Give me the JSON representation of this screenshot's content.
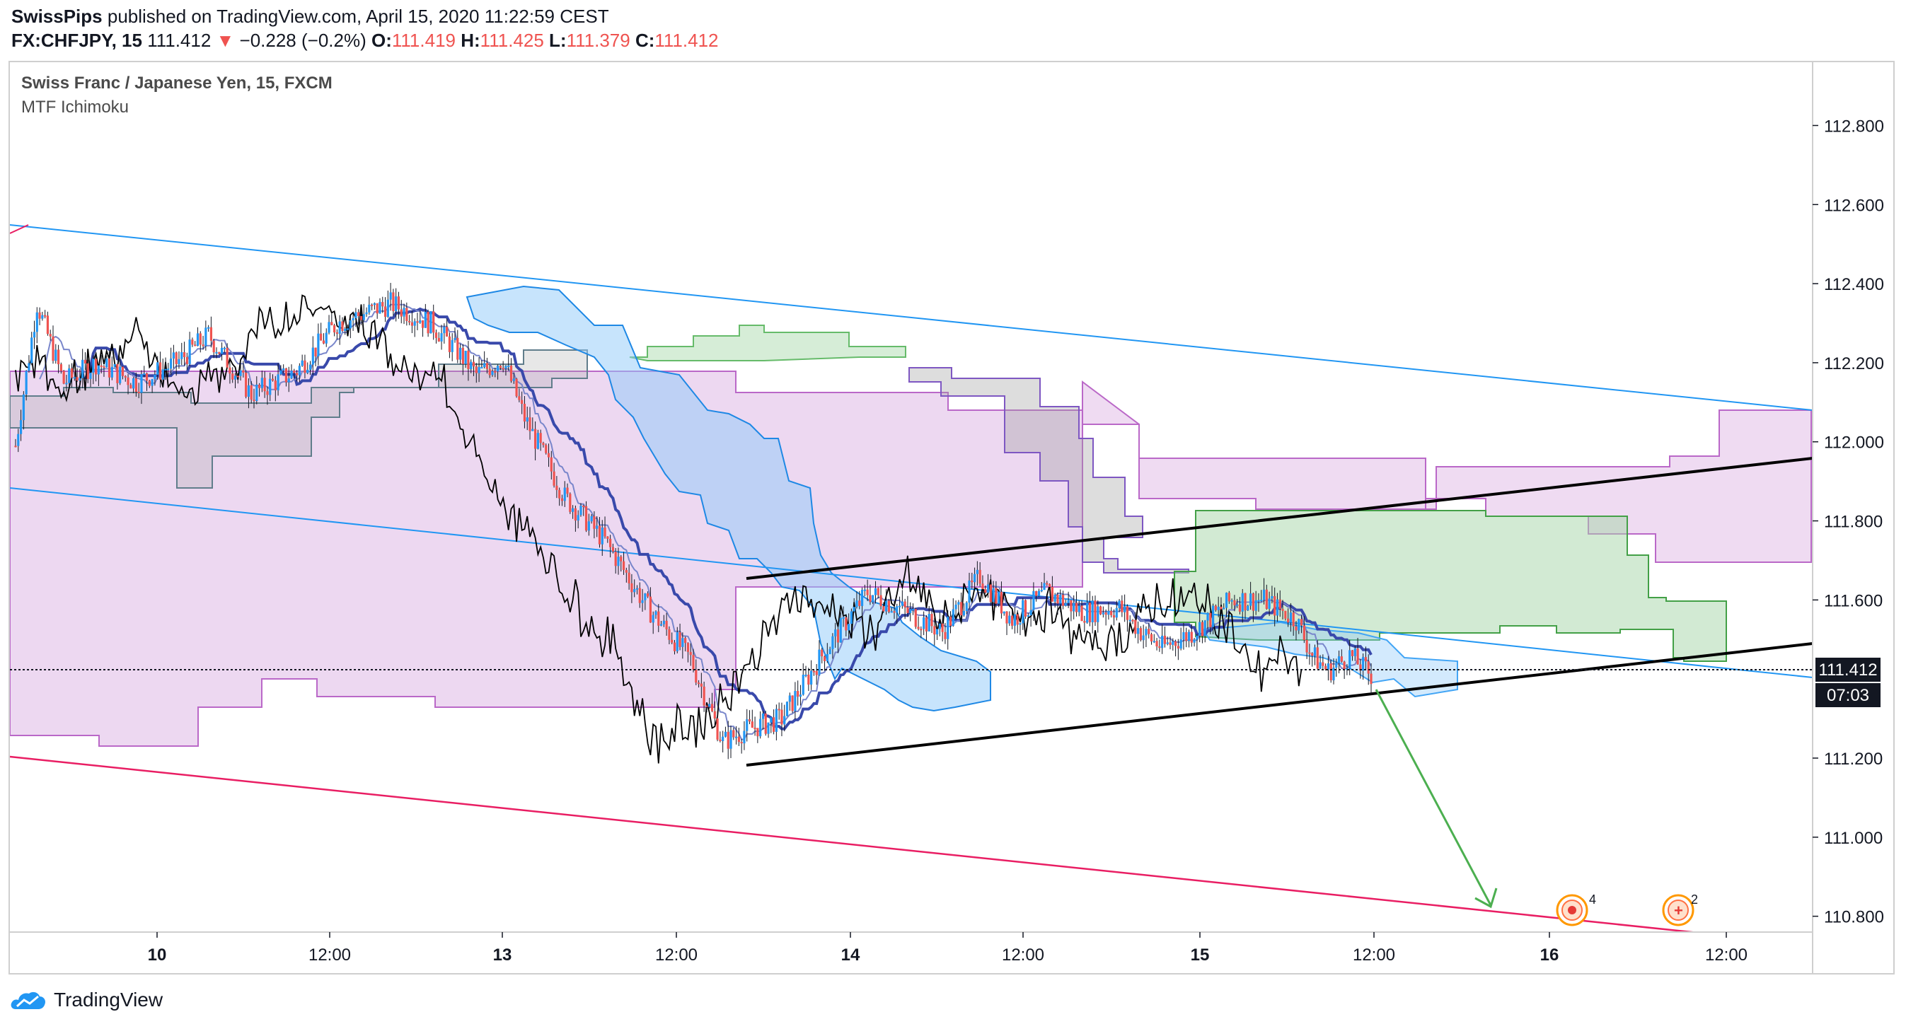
{
  "header": {
    "publisher": "SwissPips",
    "published_text": "published on TradingView.com, April 15, 2020 11:22:59 CEST",
    "symbol": "FX:CHFJPY, 15",
    "last": "111.412",
    "change_icon": "down-triangle-icon",
    "change": "−0.228 (−0.2%)",
    "o_label": "O:",
    "o_value": "111.419",
    "h_label": "H:",
    "h_value": "111.425",
    "l_label": "L:",
    "l_value": "111.379",
    "c_label": "C:",
    "c_value": "111.412"
  },
  "legend": {
    "title": "Swiss Franc / Japanese Yen, 15, FXCM",
    "indicator": "MTF Ichimoku"
  },
  "price_badge": "111.412",
  "countdown_badge": "07:03",
  "event_badges": [
    "4",
    "2"
  ],
  "footer": {
    "brand": "TradingView",
    "logo_icon": "tradingview-cloud-icon"
  },
  "colors": {
    "up": "#2196f3",
    "down": "#ef5350",
    "channel": "#2196f3",
    "lower_channel": "#e91e63",
    "kumo_purple": "#e1bee7",
    "kumo_green": "#a5d6a7",
    "kumo_blue": "#90caf9",
    "trendline": "#000000",
    "arrow": "#4caf50"
  },
  "chart_data": {
    "type": "candlestick",
    "title": "Swiss Franc / Japanese Yen, 15, FXCM",
    "y_ticks": [
      "112.800",
      "112.600",
      "112.400",
      "112.200",
      "112.000",
      "111.800",
      "111.600",
      "111.200",
      "111.000",
      "110.800"
    ],
    "x_ticks": [
      "10",
      "12:00",
      "13",
      "12:00",
      "14",
      "12:00",
      "15",
      "12:00",
      "16",
      "12:00"
    ],
    "ylim": [
      110.76,
      112.96
    ],
    "last_price": 111.412,
    "price_path": [
      [
        0,
        111.99
      ],
      [
        8,
        112.35
      ],
      [
        18,
        112.15
      ],
      [
        30,
        112.2
      ],
      [
        45,
        112.15
      ],
      [
        60,
        112.2
      ],
      [
        72,
        112.27
      ],
      [
        88,
        112.12
      ],
      [
        105,
        112.18
      ],
      [
        120,
        112.3
      ],
      [
        140,
        112.35
      ],
      [
        155,
        112.3
      ],
      [
        166,
        112.22
      ],
      [
        172,
        112.17
      ],
      [
        182,
        112.21
      ],
      [
        190,
        112.06
      ],
      [
        205,
        111.86
      ],
      [
        220,
        111.75
      ],
      [
        236,
        111.58
      ],
      [
        252,
        111.45
      ],
      [
        264,
        111.24
      ],
      [
        272,
        111.27
      ],
      [
        286,
        111.3
      ],
      [
        300,
        111.45
      ],
      [
        318,
        111.62
      ],
      [
        330,
        111.58
      ],
      [
        346,
        111.52
      ],
      [
        360,
        111.66
      ],
      [
        372,
        111.55
      ],
      [
        385,
        111.62
      ],
      [
        398,
        111.57
      ],
      [
        412,
        111.58
      ],
      [
        420,
        111.52
      ],
      [
        428,
        111.48
      ],
      [
        440,
        111.52
      ],
      [
        454,
        111.6
      ],
      [
        466,
        111.6
      ],
      [
        478,
        111.55
      ],
      [
        484,
        111.46
      ],
      [
        490,
        111.42
      ],
      [
        498,
        111.46
      ],
      [
        506,
        111.41
      ]
    ]
  }
}
